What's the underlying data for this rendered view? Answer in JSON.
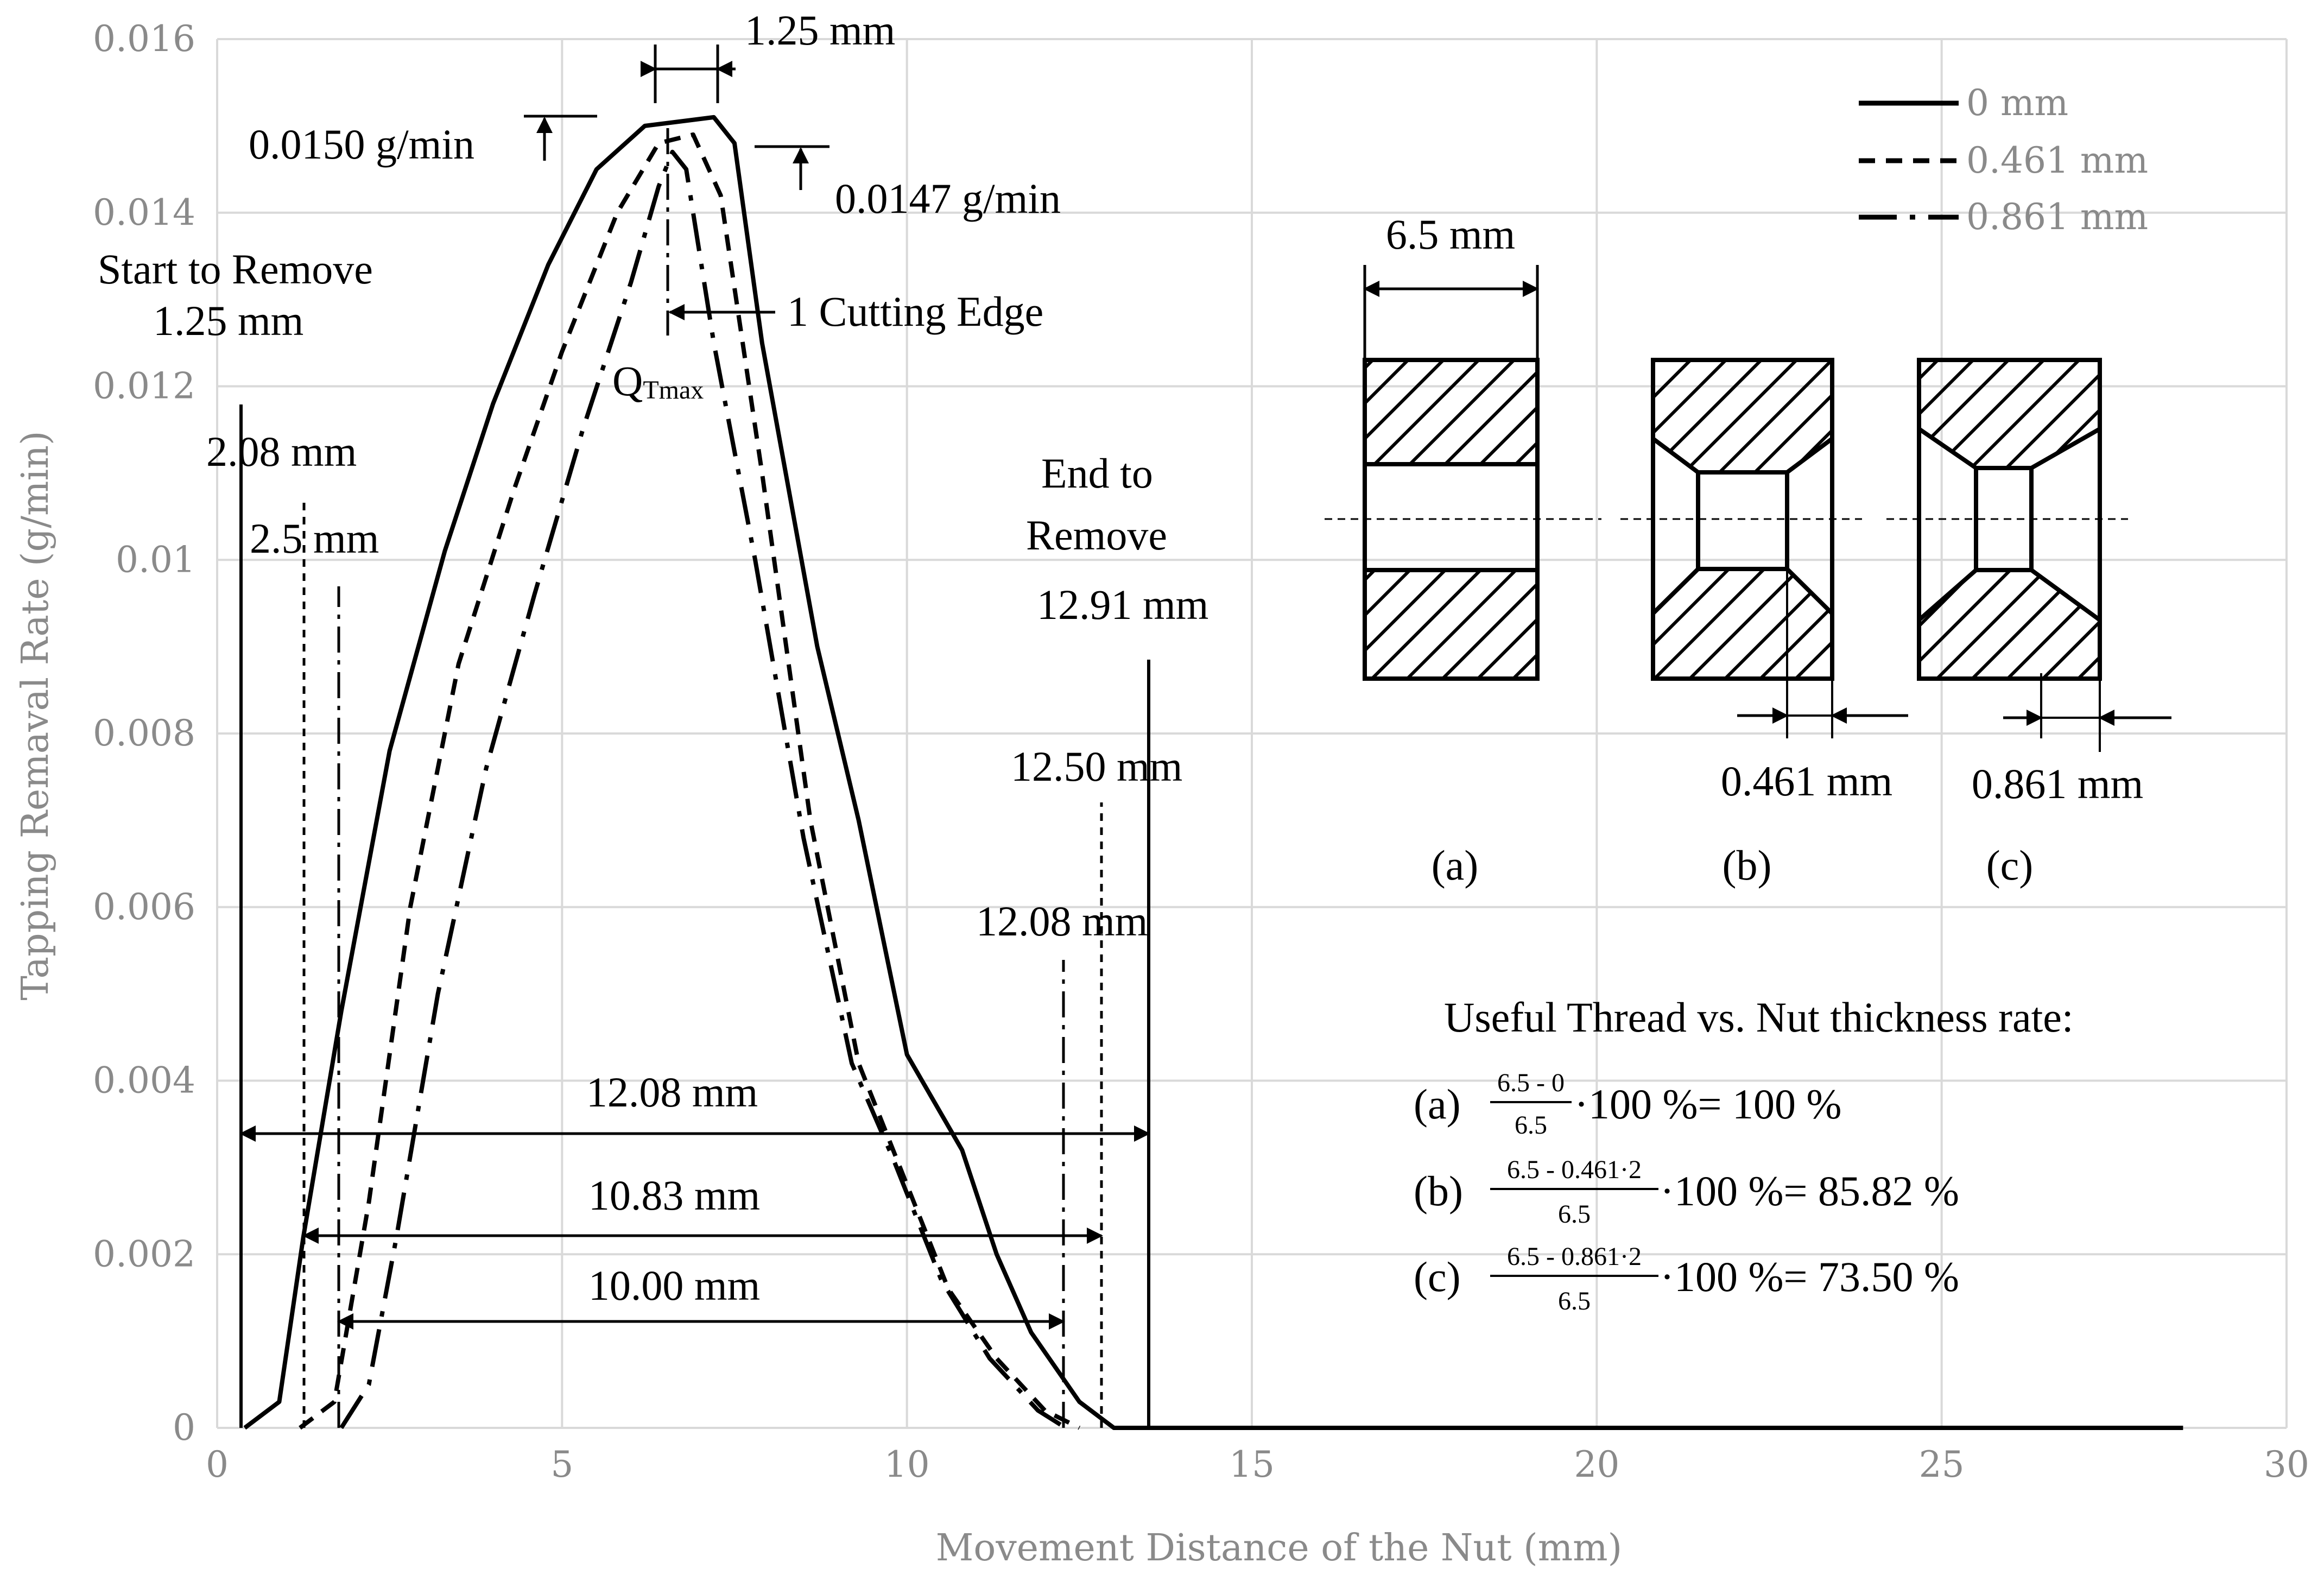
{
  "chart_data": {
    "type": "line",
    "xlabel": "Movement Distance of the Nut (mm)",
    "ylabel": "Tapping Remaval Rate (g/min)",
    "xlim": [
      0,
      30
    ],
    "ylim": [
      0,
      0.016
    ],
    "x_ticks": [
      "0",
      "5",
      "10",
      "15",
      "20",
      "25",
      "30"
    ],
    "y_ticks": [
      "0",
      "0.002",
      "0.004",
      "0.006",
      "0.008",
      "0.01",
      "0.012",
      "0.014",
      "0.016"
    ],
    "grid": true,
    "legend_position": "top-right",
    "series": [
      {
        "name": "0 mm",
        "style": "solid",
        "points": [
          [
            0.4,
            0
          ],
          [
            0.9,
            0.0003
          ],
          [
            1.25,
            0.0022
          ],
          [
            1.8,
            0.0048
          ],
          [
            2.5,
            0.0078
          ],
          [
            3.3,
            0.0101
          ],
          [
            4.0,
            0.0118
          ],
          [
            4.8,
            0.0134
          ],
          [
            5.5,
            0.0145
          ],
          [
            6.2,
            0.015
          ],
          [
            7.2,
            0.0151
          ],
          [
            7.5,
            0.0148
          ],
          [
            7.9,
            0.0125
          ],
          [
            8.7,
            0.009
          ],
          [
            9.3,
            0.007
          ],
          [
            10.0,
            0.0043
          ],
          [
            10.8,
            0.0032
          ],
          [
            11.3,
            0.002
          ],
          [
            11.8,
            0.0011
          ],
          [
            12.5,
            0.0003
          ],
          [
            13.0,
            0
          ],
          [
            28.5,
            0
          ]
        ]
      },
      {
        "name": "0.461 mm",
        "style": "dashed",
        "points": [
          [
            1.2,
            0
          ],
          [
            1.7,
            0.0003
          ],
          [
            2.2,
            0.0026
          ],
          [
            2.8,
            0.006
          ],
          [
            3.5,
            0.0088
          ],
          [
            4.3,
            0.0108
          ],
          [
            5.0,
            0.0124
          ],
          [
            5.8,
            0.014
          ],
          [
            6.4,
            0.0148
          ],
          [
            6.9,
            0.0149
          ],
          [
            7.3,
            0.0142
          ],
          [
            7.9,
            0.011
          ],
          [
            8.6,
            0.007
          ],
          [
            9.3,
            0.0042
          ],
          [
            9.9,
            0.003
          ],
          [
            10.6,
            0.0016
          ],
          [
            11.3,
            0.0008
          ],
          [
            12.0,
            0.0002
          ],
          [
            12.5,
            0
          ]
        ]
      },
      {
        "name": "0.861 mm",
        "style": "dash-dot",
        "points": [
          [
            1.8,
            0
          ],
          [
            2.2,
            0.0005
          ],
          [
            2.6,
            0.0022
          ],
          [
            3.2,
            0.005
          ],
          [
            3.9,
            0.0076
          ],
          [
            4.6,
            0.0096
          ],
          [
            5.3,
            0.0115
          ],
          [
            6.0,
            0.0132
          ],
          [
            6.4,
            0.0143
          ],
          [
            6.6,
            0.0147
          ],
          [
            6.8,
            0.0145
          ],
          [
            7.2,
            0.0125
          ],
          [
            7.8,
            0.01
          ],
          [
            8.5,
            0.0068
          ],
          [
            9.2,
            0.0042
          ],
          [
            9.8,
            0.0031
          ],
          [
            10.5,
            0.0017
          ],
          [
            11.2,
            0.0008
          ],
          [
            11.9,
            0.0002
          ],
          [
            12.3,
            0
          ]
        ]
      }
    ]
  },
  "annotations": {
    "peak_width": "1.25 mm",
    "peak_0": "0.0150 g/min",
    "peak_1": "0.0147 g/min",
    "start_remove_1": "Start to Remove",
    "start_remove_2": "1.25 mm",
    "cutting_edge": "1 Cutting Edge",
    "qtmax_main": "Q",
    "qtmax_sub": "Tmax",
    "start_2_08": "2.08 mm",
    "start_2_5": "2.5 mm",
    "end_remove_1": "End to",
    "end_remove_2": "Remove",
    "end_12_91": "12.91 mm",
    "end_12_50": "12.50 mm",
    "end_12_08": "12.08 mm",
    "span_12_08": "12.08 mm",
    "span_10_83": "10.83 mm",
    "span_10_00": "10.00 mm"
  },
  "inset": {
    "width_label": "6.5 mm",
    "label_b": "0.461 mm",
    "label_c": "0.861 mm",
    "caption_a": "(a)",
    "caption_b": "(b)",
    "caption_c": "(c)"
  },
  "formula": {
    "title": "Useful Thread vs. Nut thickness rate:",
    "rows": [
      {
        "label": "(a)",
        "num": "6.5 - 0",
        "den": "6.5",
        "rest": "·100 %= 100 %"
      },
      {
        "label": "(b)",
        "num": "6.5 - 0.461·2",
        "den": "6.5",
        "rest": "·100 %= 85.82 %"
      },
      {
        "label": "(c)",
        "num": "6.5 - 0.861·2",
        "den": "6.5",
        "rest": "·100 %= 73.50 %"
      }
    ]
  }
}
